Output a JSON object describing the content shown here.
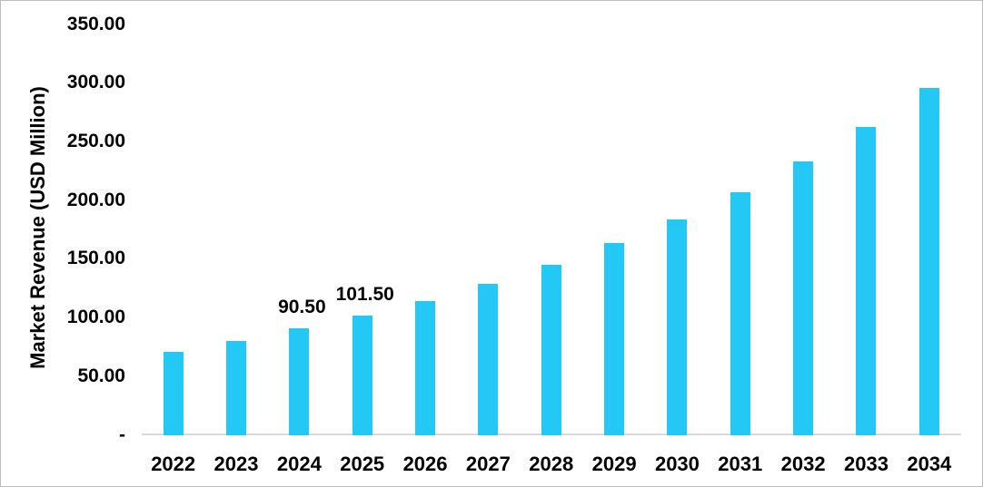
{
  "chart_data": {
    "type": "bar",
    "ylabel": "Market Revenue (USD Million)",
    "xlabel": "",
    "categories": [
      "2022",
      "2023",
      "2024",
      "2025",
      "2026",
      "2027",
      "2028",
      "2029",
      "2030",
      "2031",
      "2032",
      "2033",
      "2034"
    ],
    "values": [
      70.7,
      80.0,
      90.5,
      101.5,
      114.3,
      128.7,
      144.9,
      163.2,
      183.7,
      206.9,
      232.9,
      262.3,
      295.3
    ],
    "data_labels": [
      "",
      "",
      "90.50",
      "101.50",
      "",
      "",
      "",
      "",
      "",
      "",
      "",
      "",
      ""
    ],
    "yticks": [
      {
        "value": 0,
        "label": "-"
      },
      {
        "value": 50,
        "label": "50.00"
      },
      {
        "value": 100,
        "label": "100.00"
      },
      {
        "value": 150,
        "label": "150.00"
      },
      {
        "value": 200,
        "label": "200.00"
      },
      {
        "value": 250,
        "label": "250.00"
      },
      {
        "value": 300,
        "label": "300.00"
      },
      {
        "value": 350,
        "label": "350.00"
      }
    ],
    "ylim": [
      0,
      350
    ],
    "grid": false,
    "legend": null,
    "bar_color": "#23C8F5",
    "axis_line_color": "#D9D9D9",
    "text_color": "#000000"
  }
}
